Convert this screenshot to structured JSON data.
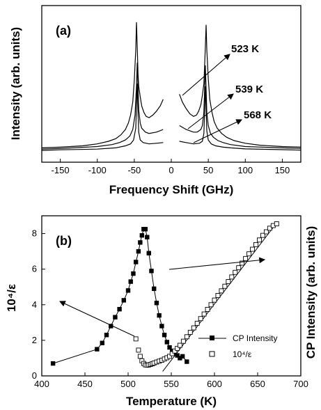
{
  "chart_data": [
    {
      "panel": "(a)",
      "type": "line",
      "xlabel": "Frequency Shift (GHz)",
      "ylabel": "Intensity (arb. units)",
      "xlim": [
        -175,
        175
      ],
      "xticks": [
        -150,
        -100,
        -50,
        0,
        50,
        100,
        150
      ],
      "ylim": [
        0,
        1
      ],
      "series": [
        {
          "name": "523 K",
          "x": [
            -175,
            -150,
            -120,
            -100,
            -85,
            -75,
            -68,
            -62,
            -58,
            -55,
            -52,
            -50,
            -48,
            -47,
            -46,
            -45,
            -44,
            -42,
            -40,
            -37,
            -34,
            -30,
            -25,
            -20,
            -15,
            -11,
            11,
            15,
            20,
            25,
            30,
            34,
            37,
            40,
            42,
            44,
            45,
            46,
            47,
            48,
            50,
            52,
            55,
            58,
            62,
            68,
            75,
            85,
            100,
            120,
            150,
            175
          ],
          "y": [
            0.03,
            0.035,
            0.045,
            0.06,
            0.08,
            0.1,
            0.13,
            0.17,
            0.22,
            0.28,
            0.38,
            0.55,
            0.78,
            0.99,
            0.8,
            0.6,
            0.5,
            0.42,
            0.35,
            0.3,
            0.27,
            0.26,
            0.28,
            0.31,
            0.35,
            0.4,
            0.44,
            0.38,
            0.33,
            0.29,
            0.27,
            0.28,
            0.31,
            0.36,
            0.43,
            0.52,
            0.65,
            0.8,
            0.97,
            0.78,
            0.56,
            0.4,
            0.3,
            0.23,
            0.18,
            0.14,
            0.11,
            0.085,
            0.065,
            0.05,
            0.04,
            0.035
          ]
        },
        {
          "name": "539 K",
          "x": [
            -175,
            -150,
            -100,
            -80,
            -70,
            -62,
            -56,
            -52,
            -49,
            -47,
            -46,
            -45,
            -44,
            -42,
            -40,
            -35,
            -30,
            -20,
            -11,
            11,
            20,
            30,
            35,
            40,
            42,
            44,
            45,
            46,
            47,
            48,
            50,
            53,
            57,
            63,
            70,
            80,
            100,
            150,
            175
          ],
          "y": [
            0.02,
            0.025,
            0.04,
            0.055,
            0.07,
            0.09,
            0.12,
            0.17,
            0.28,
            0.5,
            0.68,
            0.5,
            0.32,
            0.22,
            0.18,
            0.15,
            0.14,
            0.15,
            0.17,
            0.2,
            0.17,
            0.15,
            0.15,
            0.17,
            0.2,
            0.3,
            0.47,
            0.66,
            0.48,
            0.3,
            0.2,
            0.14,
            0.11,
            0.085,
            0.07,
            0.055,
            0.04,
            0.03,
            0.025
          ]
        },
        {
          "name": "568 K",
          "x": [
            -175,
            -150,
            -100,
            -75,
            -62,
            -55,
            -51,
            -48,
            -47,
            -46,
            -45,
            -44,
            -42,
            -38,
            -30,
            -20,
            -11,
            11,
            20,
            30,
            38,
            42,
            44,
            45,
            46,
            47,
            48,
            50,
            54,
            60,
            70,
            80,
            100,
            150,
            175
          ],
          "y": [
            0.01,
            0.015,
            0.02,
            0.03,
            0.045,
            0.06,
            0.09,
            0.18,
            0.35,
            0.52,
            0.3,
            0.15,
            0.09,
            0.07,
            0.06,
            0.065,
            0.07,
            0.08,
            0.07,
            0.06,
            0.065,
            0.08,
            0.14,
            0.3,
            0.5,
            0.32,
            0.16,
            0.09,
            0.06,
            0.045,
            0.035,
            0.03,
            0.022,
            0.016,
            0.012
          ]
        }
      ]
    },
    {
      "panel": "(b)",
      "type": "scatter",
      "xlabel": "Temperature (K)",
      "ylabel": "10⁴/ε",
      "ylabel_right": "CP Intensity (arb. units)",
      "xlim": [
        400,
        700
      ],
      "xticks": [
        400,
        450,
        500,
        550,
        600,
        650,
        700
      ],
      "ylim": [
        0,
        9
      ],
      "yticks": [
        0,
        2,
        4,
        6,
        8
      ],
      "series": [
        {
          "name": "CP Intensity",
          "x": [
            413,
            464,
            470,
            475,
            480,
            485,
            490,
            495,
            500,
            503,
            506,
            509,
            512,
            514,
            516,
            518,
            520,
            522,
            524,
            527,
            530,
            533,
            536,
            539,
            542,
            545,
            548,
            551,
            554,
            557,
            560,
            563,
            568
          ],
          "y": [
            0.7,
            1.5,
            1.85,
            2.3,
            2.8,
            3.3,
            3.75,
            4.25,
            4.8,
            5.3,
            5.75,
            6.4,
            7.0,
            7.5,
            7.9,
            8.25,
            8.25,
            7.8,
            6.9,
            5.9,
            4.9,
            4.1,
            3.4,
            2.8,
            2.3,
            1.9,
            1.6,
            1.4,
            1.25,
            1.15,
            1.0,
            1.1,
            0.8
          ]
        },
        {
          "name": "10⁴/ε",
          "x": [
            509,
            512,
            514,
            516,
            518,
            520,
            522,
            524,
            526,
            528,
            530,
            533,
            536,
            539,
            542,
            545,
            548,
            551,
            554,
            557,
            560,
            564,
            568,
            572,
            576,
            580,
            584,
            588,
            592,
            596,
            600,
            604,
            608,
            612,
            616,
            620,
            624,
            628,
            632,
            636,
            640,
            644,
            648,
            652,
            656,
            660,
            664,
            668,
            672
          ],
          "y": [
            2.08,
            1.45,
            1.1,
            0.85,
            0.7,
            0.62,
            0.6,
            0.62,
            0.65,
            0.68,
            0.72,
            0.78,
            0.83,
            0.88,
            0.95,
            1.02,
            1.1,
            1.25,
            1.4,
            1.55,
            1.72,
            1.95,
            2.2,
            2.45,
            2.7,
            2.96,
            3.22,
            3.48,
            3.74,
            4.0,
            4.26,
            4.52,
            4.78,
            5.04,
            5.3,
            5.56,
            5.82,
            6.08,
            6.34,
            6.6,
            6.86,
            7.12,
            7.38,
            7.64,
            7.9,
            8.1,
            8.3,
            8.45,
            8.55
          ]
        }
      ],
      "annotations": [
        "CP Intensity",
        "10⁴/ε"
      ]
    }
  ],
  "labels": {
    "a_tag": "(a)",
    "b_tag": "(b)",
    "a_xlabel": "Frequency Shift (GHz)",
    "a_ylabel": "Intensity (arb. units)",
    "b_xlabel": "Temperature (K)",
    "b_ylabel_left": "10⁴/ε",
    "b_ylabel_right": "CP Intensity (arb. units)",
    "t523": "523 K",
    "t539": "539 K",
    "t568": "568 K",
    "legend_cp": "CP Intensity",
    "legend_eps": "10⁴/ε"
  }
}
